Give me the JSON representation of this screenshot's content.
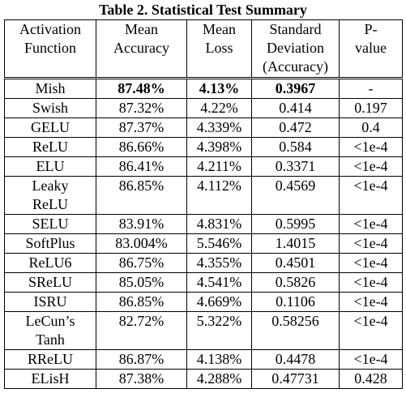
{
  "table": {
    "title": "Table 2. Statistical Test Summary",
    "headers": [
      "Activation Function",
      "Mean Accuracy",
      "Mean Loss",
      "Standard Deviation (Accuracy)",
      "P-value"
    ],
    "rows": [
      [
        "Mish",
        "87.48%",
        "4.13%",
        "0.3967",
        "-"
      ],
      [
        "Swish",
        "87.32%",
        "4.22%",
        "0.414",
        "0.197"
      ],
      [
        "GELU",
        "87.37%",
        "4.339%",
        "0.472",
        "0.4"
      ],
      [
        "ReLU",
        "86.66%",
        "4.398%",
        "0.584",
        "<1e-4"
      ],
      [
        "ELU",
        "86.41%",
        "4.211%",
        "0.3371",
        "<1e-4"
      ],
      [
        "Leaky ReLU",
        "86.85%",
        "4.112%",
        "0.4569",
        "<1e-4"
      ],
      [
        "SELU",
        "83.91%",
        "4.831%",
        "0.5995",
        "<1e-4"
      ],
      [
        "SoftPlus",
        "83.004%",
        "5.546%",
        "1.4015",
        "<1e-4"
      ],
      [
        "ReLU6",
        "86.75%",
        "4.355%",
        "0.4501",
        "<1e-4"
      ],
      [
        "SReLU",
        "85.05%",
        "4.541%",
        "0.5826",
        "<1e-4"
      ],
      [
        "ISRU",
        "86.85%",
        "4.669%",
        "0.1106",
        "<1e-4"
      ],
      [
        "LeCun’s Tanh",
        "82.72%",
        "5.322%",
        "0.58256",
        "<1e-4"
      ],
      [
        "RReLU",
        "86.87%",
        "4.138%",
        "0.4478",
        "<1e-4"
      ],
      [
        "ELisH",
        "87.38%",
        "4.288%",
        "0.47731",
        "0.428"
      ]
    ]
  }
}
